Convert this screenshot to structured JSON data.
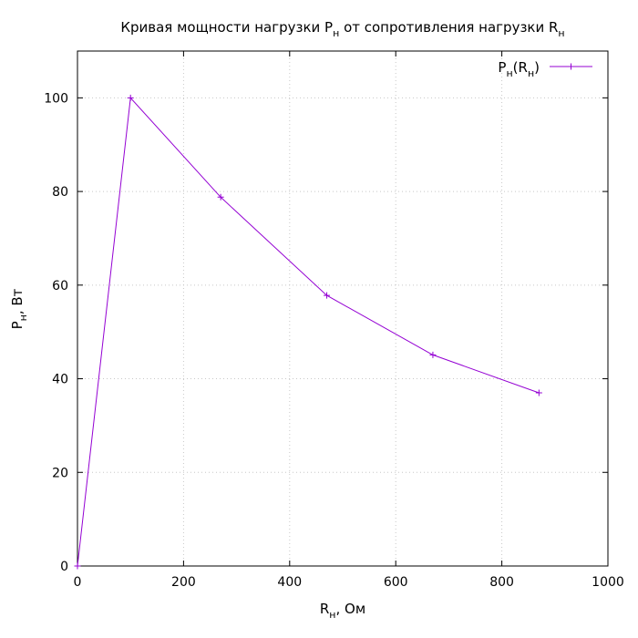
{
  "chart_data": {
    "type": "line",
    "title": "Кривая мощности нагрузки P",
    "title_sub": "н",
    "title_mid": " от сопротивления нагрузки R",
    "title_sub2": "н",
    "xlabel": "R",
    "xlabel_sub": "н",
    "xlabel_rest": ", Ом",
    "ylabel": "P",
    "ylabel_sub": "н",
    "ylabel_rest": ", Вт",
    "xlim": [
      0,
      1000
    ],
    "ylim": [
      0,
      110
    ],
    "xticks": [
      0,
      200,
      400,
      600,
      800,
      1000
    ],
    "yticks": [
      0,
      20,
      40,
      60,
      80,
      100
    ],
    "grid": true,
    "legend_position": "top-right",
    "series": [
      {
        "name": "P",
        "name_sub": "н",
        "name_mid": "(R",
        "name_sub2": "н",
        "name_end": ")",
        "color": "#9400d3",
        "marker": "plus",
        "x": [
          0,
          100,
          270,
          470,
          670,
          870
        ],
        "y": [
          0,
          100,
          78.8,
          57.8,
          45.1,
          37.0
        ]
      }
    ]
  }
}
